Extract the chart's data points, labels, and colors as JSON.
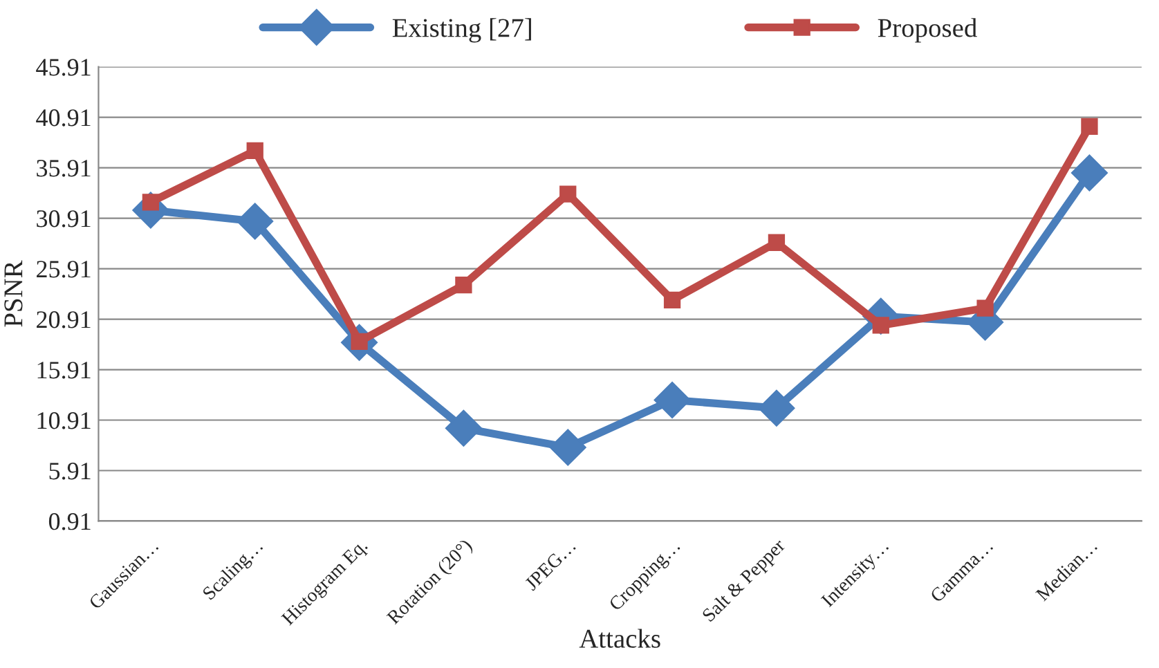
{
  "chart_data": {
    "type": "line",
    "xlabel": "Attacks",
    "ylabel": "PSNR",
    "categories": [
      "Gaussian…",
      "Scaling…",
      "Histogram Eq.",
      "Rotation (20°)",
      "JPEG…",
      "Cropping…",
      "Salt & Pepper",
      "Intensity…",
      "Gamma…",
      "Median…"
    ],
    "series": [
      {
        "name": "Existing [27]",
        "color": "#4a7ebb",
        "marker": "diamond",
        "values": [
          31.7,
          30.6,
          18.6,
          10.1,
          8.2,
          12.9,
          12.1,
          21.2,
          20.6,
          35.4
        ]
      },
      {
        "name": "Proposed",
        "color": "#be4b48",
        "marker": "square",
        "values": [
          32.5,
          37.6,
          18.7,
          24.3,
          33.3,
          22.8,
          28.5,
          20.3,
          22.0,
          40.0
        ]
      }
    ],
    "ylim": [
      0.91,
      45.91
    ],
    "yticks": [
      0.91,
      5.91,
      10.91,
      15.91,
      20.91,
      25.91,
      30.91,
      35.91,
      40.91,
      45.91
    ],
    "grid": "y",
    "legend": "top",
    "line_style": "solid"
  }
}
